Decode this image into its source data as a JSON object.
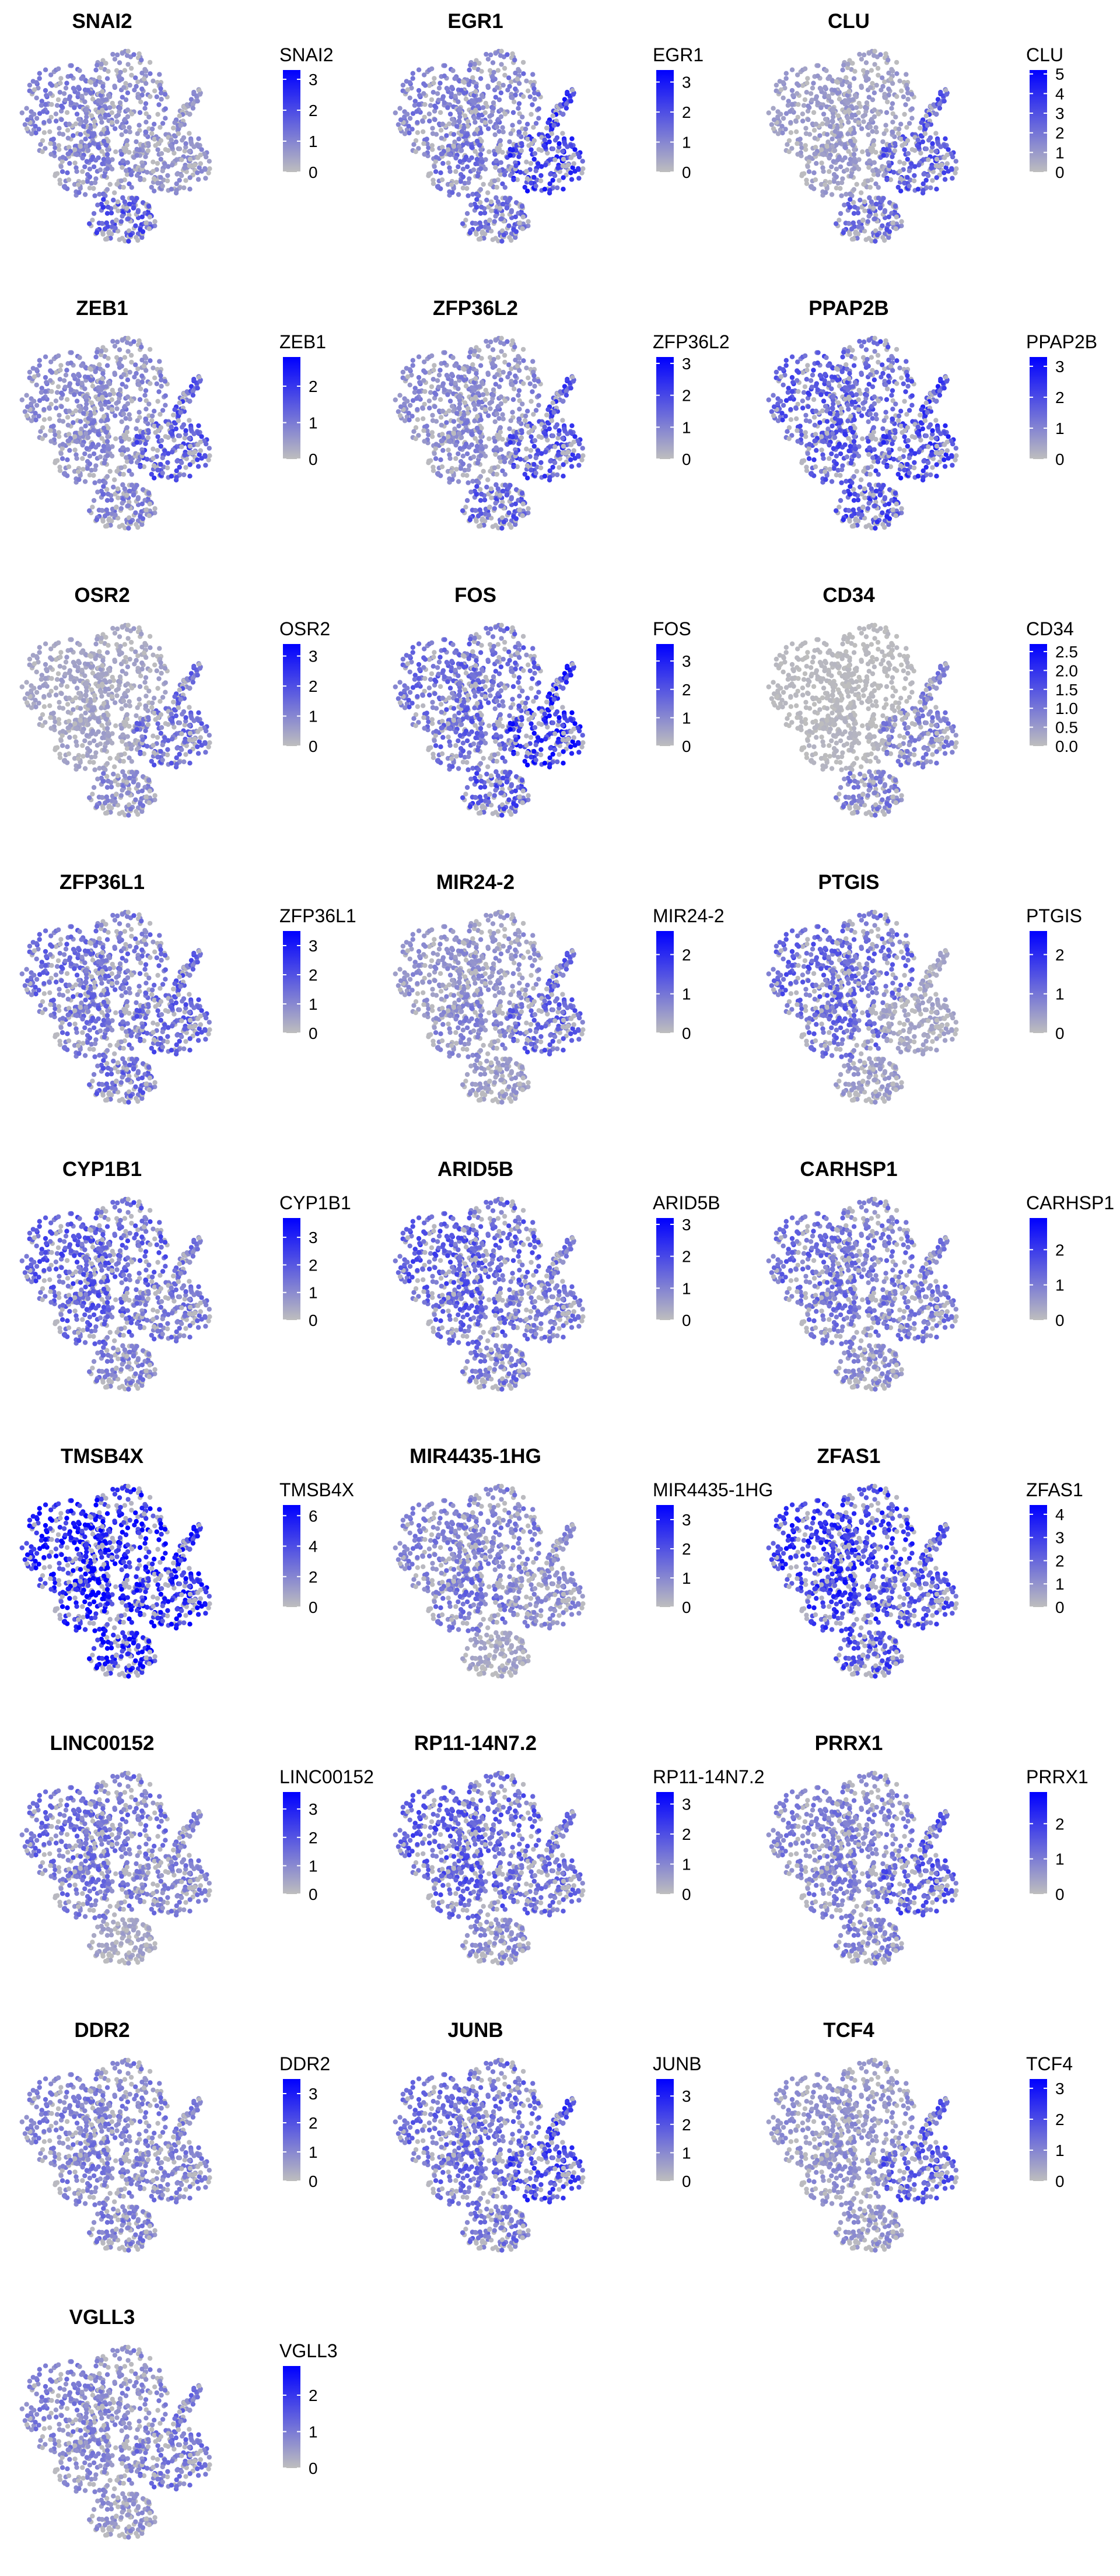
{
  "chart_data": [
    {
      "type": "scatter",
      "title": "SNAI2",
      "legend_title": "SNAI2",
      "ticks": [
        "0",
        "1",
        "2",
        "3"
      ],
      "tick_values": [
        0,
        1,
        2,
        3
      ],
      "vmax": 3.3,
      "intensity": [
        0.35,
        0.3,
        0.35,
        0.25,
        0.55
      ]
    },
    {
      "type": "scatter",
      "title": "EGR1",
      "legend_title": "EGR1",
      "ticks": [
        "0",
        "1",
        "2",
        "3"
      ],
      "tick_values": [
        0,
        1,
        2,
        3
      ],
      "vmax": 3.4,
      "intensity": [
        0.35,
        0.35,
        0.4,
        0.7,
        0.45
      ]
    },
    {
      "type": "scatter",
      "title": "CLU",
      "legend_title": "CLU",
      "ticks": [
        "0",
        "1",
        "2",
        "3",
        "4",
        "5"
      ],
      "tick_values": [
        0,
        1,
        2,
        3,
        4,
        5
      ],
      "vmax": 5.2,
      "intensity": [
        0.2,
        0.2,
        0.2,
        0.55,
        0.45
      ]
    },
    {
      "type": "scatter",
      "title": "ZEB1",
      "legend_title": "ZEB1",
      "ticks": [
        "0",
        "1",
        "2"
      ],
      "tick_values": [
        0,
        1,
        2
      ],
      "vmax": 2.8,
      "intensity": [
        0.3,
        0.3,
        0.3,
        0.55,
        0.35
      ]
    },
    {
      "type": "scatter",
      "title": "ZFP36L2",
      "legend_title": "ZFP36L2",
      "ticks": [
        "0",
        "1",
        "2",
        "3"
      ],
      "tick_values": [
        0,
        1,
        2,
        3
      ],
      "vmax": 3.2,
      "intensity": [
        0.3,
        0.3,
        0.3,
        0.6,
        0.5
      ]
    },
    {
      "type": "scatter",
      "title": "PPAP2B",
      "legend_title": "PPAP2B",
      "ticks": [
        "0",
        "1",
        "2",
        "3"
      ],
      "tick_values": [
        0,
        1,
        2,
        3
      ],
      "vmax": 3.3,
      "intensity": [
        0.55,
        0.5,
        0.55,
        0.65,
        0.6
      ]
    },
    {
      "type": "scatter",
      "title": "OSR2",
      "legend_title": "OSR2",
      "ticks": [
        "0",
        "1",
        "2",
        "3"
      ],
      "tick_values": [
        0,
        1,
        2,
        3
      ],
      "vmax": 3.4,
      "intensity": [
        0.15,
        0.15,
        0.15,
        0.45,
        0.3
      ]
    },
    {
      "type": "scatter",
      "title": "FOS",
      "legend_title": "FOS",
      "ticks": [
        "0",
        "1",
        "2",
        "3"
      ],
      "tick_values": [
        0,
        1,
        2,
        3
      ],
      "vmax": 3.6,
      "intensity": [
        0.45,
        0.45,
        0.45,
        0.8,
        0.55
      ]
    },
    {
      "type": "scatter",
      "title": "CD34",
      "legend_title": "CD34",
      "ticks": [
        "0.0",
        "0.5",
        "1.0",
        "1.5",
        "2.0",
        "2.5"
      ],
      "tick_values": [
        0,
        0.5,
        1,
        1.5,
        2,
        2.5
      ],
      "vmax": 2.7,
      "intensity": [
        0.03,
        0.03,
        0.05,
        0.35,
        0.35
      ]
    },
    {
      "type": "scatter",
      "title": "ZFP36L1",
      "legend_title": "ZFP36L1",
      "ticks": [
        "0",
        "1",
        "2",
        "3"
      ],
      "tick_values": [
        0,
        1,
        2,
        3
      ],
      "vmax": 3.5,
      "intensity": [
        0.45,
        0.4,
        0.4,
        0.5,
        0.45
      ]
    },
    {
      "type": "scatter",
      "title": "MIR24-2",
      "legend_title": "MIR24-2",
      "ticks": [
        "0",
        "1",
        "2"
      ],
      "tick_values": [
        0,
        1,
        2
      ],
      "vmax": 2.6,
      "intensity": [
        0.25,
        0.25,
        0.3,
        0.5,
        0.2
      ]
    },
    {
      "type": "scatter",
      "title": "PTGIS",
      "legend_title": "PTGIS",
      "ticks": [
        "0",
        "1",
        "2"
      ],
      "tick_values": [
        0,
        1,
        2
      ],
      "vmax": 2.6,
      "intensity": [
        0.5,
        0.45,
        0.45,
        0.15,
        0.2
      ]
    },
    {
      "type": "scatter",
      "title": "CYP1B1",
      "legend_title": "CYP1B1",
      "ticks": [
        "0",
        "1",
        "2",
        "3"
      ],
      "tick_values": [
        0,
        1,
        2,
        3
      ],
      "vmax": 3.7,
      "intensity": [
        0.55,
        0.5,
        0.5,
        0.4,
        0.35
      ]
    },
    {
      "type": "scatter",
      "title": "ARID5B",
      "legend_title": "ARID5B",
      "ticks": [
        "0",
        "1",
        "2",
        "3"
      ],
      "tick_values": [
        0,
        1,
        2,
        3
      ],
      "vmax": 3.2,
      "intensity": [
        0.55,
        0.5,
        0.5,
        0.4,
        0.4
      ]
    },
    {
      "type": "scatter",
      "title": "CARHSP1",
      "legend_title": "CARHSP1",
      "ticks": [
        "0",
        "1",
        "2"
      ],
      "tick_values": [
        0,
        1,
        2
      ],
      "vmax": 2.9,
      "intensity": [
        0.45,
        0.4,
        0.4,
        0.4,
        0.3
      ]
    },
    {
      "type": "scatter",
      "title": "TMSB4X",
      "legend_title": "TMSB4X",
      "ticks": [
        "0",
        "2",
        "4",
        "6"
      ],
      "tick_values": [
        0,
        2,
        4,
        6
      ],
      "vmax": 6.7,
      "intensity": [
        0.9,
        0.9,
        0.9,
        0.85,
        0.9
      ]
    },
    {
      "type": "scatter",
      "title": "MIR4435-1HG",
      "legend_title": "MIR4435-1HG",
      "ticks": [
        "0",
        "1",
        "2",
        "3"
      ],
      "tick_values": [
        0,
        1,
        2,
        3
      ],
      "vmax": 3.5,
      "intensity": [
        0.35,
        0.35,
        0.4,
        0.3,
        0.15
      ]
    },
    {
      "type": "scatter",
      "title": "ZFAS1",
      "legend_title": "ZFAS1",
      "ticks": [
        "0",
        "1",
        "2",
        "3",
        "4"
      ],
      "tick_values": [
        0,
        1,
        2,
        3,
        4
      ],
      "vmax": 4.4,
      "intensity": [
        0.75,
        0.7,
        0.7,
        0.6,
        0.6
      ]
    },
    {
      "type": "scatter",
      "title": "LINC00152",
      "legend_title": "LINC00152",
      "ticks": [
        "0",
        "1",
        "2",
        "3"
      ],
      "tick_values": [
        0,
        1,
        2,
        3
      ],
      "vmax": 3.6,
      "intensity": [
        0.45,
        0.4,
        0.4,
        0.35,
        0.15
      ]
    },
    {
      "type": "scatter",
      "title": "RP11-14N7.2",
      "legend_title": "RP11-14N7.2",
      "ticks": [
        "0",
        "1",
        "2",
        "3"
      ],
      "tick_values": [
        0,
        1,
        2,
        3
      ],
      "vmax": 3.4,
      "intensity": [
        0.55,
        0.5,
        0.5,
        0.45,
        0.3
      ]
    },
    {
      "type": "scatter",
      "title": "PRRX1",
      "legend_title": "PRRX1",
      "ticks": [
        "0",
        "1",
        "2"
      ],
      "tick_values": [
        0,
        1,
        2
      ],
      "vmax": 2.9,
      "intensity": [
        0.35,
        0.35,
        0.35,
        0.55,
        0.35
      ]
    },
    {
      "type": "scatter",
      "title": "DDR2",
      "legend_title": "DDR2",
      "ticks": [
        "0",
        "1",
        "2",
        "3"
      ],
      "tick_values": [
        0,
        1,
        2,
        3
      ],
      "vmax": 3.5,
      "intensity": [
        0.35,
        0.35,
        0.35,
        0.35,
        0.35
      ]
    },
    {
      "type": "scatter",
      "title": "JUNB",
      "legend_title": "JUNB",
      "ticks": [
        "0",
        "1",
        "2",
        "3"
      ],
      "tick_values": [
        0,
        1,
        2,
        3
      ],
      "vmax": 3.6,
      "intensity": [
        0.45,
        0.45,
        0.45,
        0.65,
        0.4
      ]
    },
    {
      "type": "scatter",
      "title": "TCF4",
      "legend_title": "TCF4",
      "ticks": [
        "0",
        "1",
        "2",
        "3"
      ],
      "tick_values": [
        0,
        1,
        2,
        3
      ],
      "vmax": 3.3,
      "intensity": [
        0.25,
        0.25,
        0.25,
        0.55,
        0.25
      ]
    },
    {
      "type": "scatter",
      "title": "VGLL3",
      "legend_title": "VGLL3",
      "ticks": [
        "0",
        "1",
        "2"
      ],
      "tick_values": [
        0,
        1,
        2
      ],
      "vmax": 2.8,
      "intensity": [
        0.35,
        0.3,
        0.3,
        0.4,
        0.25
      ]
    }
  ],
  "colors": {
    "low": "#bebebe",
    "high": "#0000ff",
    "text": "#000000",
    "background": "#ffffff"
  }
}
